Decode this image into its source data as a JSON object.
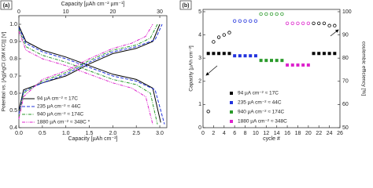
{
  "chart_data": [
    {
      "type": "line",
      "panel_label": "(a)",
      "xlabel": "Capacity [µAh cm⁻²]",
      "x2label": "Capacity [µAh cm⁻² µm⁻¹]",
      "ylabel": "Potential vs. [Ag|AgCl (3M KCl)] [V]",
      "xlim": [
        0,
        3.15
      ],
      "xticks": [
        {
          "value": 0,
          "label": "0.0"
        },
        {
          "value": 0.5,
          "label": "0.5"
        },
        {
          "value": 1,
          "label": "1.0"
        },
        1.5,
        {
          "value": 2,
          "label": "2.0"
        },
        2.5,
        {
          "value": 3,
          "label": "3.0"
        }
      ],
      "x2lim": [
        0,
        31.5
      ],
      "x2ticks": [
        0,
        10,
        20,
        30
      ],
      "ylim": [
        0.4,
        1.05
      ],
      "yticks": [
        0.4,
        0.5,
        0.6,
        0.7,
        0.8,
        0.9,
        {
          "value": 1,
          "label": "1.0"
        }
      ],
      "series": [
        {
          "name": "94 µA cm⁻² ≈ 17C",
          "color": "#000000",
          "dash": "solid",
          "curves": [
            {
              "x": [
                0,
                0.15,
                0.5,
                1,
                1.5,
                2,
                2.5,
                2.85,
                3.02
              ],
              "values": [
                0.99,
                0.9,
                0.85,
                0.81,
                0.76,
                0.71,
                0.68,
                0.63,
                0.43
              ]
            },
            {
              "x": [
                0,
                0.1,
                0.5,
                1,
                1.5,
                2,
                2.5,
                2.85,
                3.0
              ],
              "values": [
                0.5,
                0.62,
                0.66,
                0.7,
                0.77,
                0.83,
                0.86,
                0.9,
                1.0
              ]
            }
          ]
        },
        {
          "name": "235 µA cm⁻² ≈ 44C",
          "color": "#2233dd",
          "dash": "dashed",
          "curves": [
            {
              "x": [
                0,
                0.15,
                0.5,
                1,
                1.5,
                2,
                2.5,
                2.9,
                3.1
              ],
              "values": [
                0.98,
                0.89,
                0.84,
                0.8,
                0.75,
                0.7,
                0.67,
                0.62,
                0.42
              ]
            },
            {
              "x": [
                0,
                0.1,
                0.5,
                1,
                1.5,
                2,
                2.5,
                2.9,
                3.05
              ],
              "values": [
                0.48,
                0.61,
                0.66,
                0.71,
                0.78,
                0.84,
                0.87,
                0.91,
                1.0
              ]
            }
          ]
        },
        {
          "name": "940 µA cm⁻² ≈ 174C",
          "color": "#2a9a2a",
          "dash": "dashdot",
          "curves": [
            {
              "x": [
                0,
                0.15,
                0.5,
                1,
                1.5,
                2,
                2.5,
                2.8,
                2.95
              ],
              "values": [
                0.97,
                0.87,
                0.82,
                0.78,
                0.73,
                0.68,
                0.65,
                0.6,
                0.42
              ]
            },
            {
              "x": [
                0,
                0.1,
                0.5,
                1,
                1.5,
                2,
                2.5,
                2.8,
                2.95
              ],
              "values": [
                0.46,
                0.6,
                0.67,
                0.72,
                0.79,
                0.85,
                0.88,
                0.92,
                1.0
              ]
            }
          ]
        },
        {
          "name": "1880 µA cm⁻² ≈ 348C *",
          "color": "#dd22cc",
          "dash": "dashdotdot",
          "curves": [
            {
              "x": [
                0,
                0.15,
                0.5,
                1,
                1.5,
                2,
                2.4,
                2.7,
                2.85
              ],
              "values": [
                0.96,
                0.85,
                0.8,
                0.76,
                0.71,
                0.66,
                0.63,
                0.58,
                0.42
              ]
            },
            {
              "x": [
                0,
                0.1,
                0.5,
                1,
                1.5,
                2,
                2.4,
                2.7,
                2.85
              ],
              "values": [
                0.45,
                0.58,
                0.68,
                0.73,
                0.8,
                0.86,
                0.89,
                0.93,
                1.0
              ]
            }
          ]
        }
      ]
    },
    {
      "type": "scatter",
      "panel_label": "(b)",
      "xlabel": "cycle #",
      "ylabel": "Capacity [µAh cm⁻²]",
      "y2label": "coulombic efficiency [%]",
      "xlim": [
        0,
        26
      ],
      "xticks": [
        0,
        2,
        4,
        6,
        8,
        10,
        12,
        14,
        16,
        18,
        20,
        22,
        24,
        26
      ],
      "ylim": [
        0,
        5.1
      ],
      "yticks": [
        0,
        1,
        2,
        3,
        4,
        5
      ],
      "y2lim": [
        50,
        101
      ],
      "y2ticks": [
        50,
        60,
        70,
        80,
        90,
        100
      ],
      "series": [
        {
          "name": "94 µA cm⁻² ≈ 17C",
          "color": "#000000",
          "marker": "square",
          "x": [
            1,
            2,
            3,
            4,
            5,
            21,
            22,
            23,
            24,
            25
          ],
          "values": [
            3.2,
            3.2,
            3.2,
            3.2,
            3.2,
            3.2,
            3.2,
            3.2,
            3.2,
            3.2
          ]
        },
        {
          "name": "235 µA cm⁻² ≈ 44C",
          "color": "#2233dd",
          "marker": "square",
          "x": [
            6,
            7,
            8,
            9,
            10
          ],
          "values": [
            3.1,
            3.1,
            3.1,
            3.1,
            3.1
          ]
        },
        {
          "name": "940 µA cm⁻² ≈ 174C",
          "color": "#2a9a2a",
          "marker": "square",
          "x": [
            11,
            12,
            13,
            14,
            15
          ],
          "values": [
            2.9,
            2.9,
            2.9,
            2.9,
            2.9
          ]
        },
        {
          "name": "1880 µA cm⁻² ≈ 348C",
          "color": "#dd22cc",
          "marker": "square",
          "x": [
            16,
            17,
            18,
            19,
            20
          ],
          "values": [
            2.7,
            2.7,
            2.7,
            2.7,
            2.7
          ]
        },
        {
          "color": "#000000",
          "marker": "circle",
          "axis": "y2",
          "x": [
            1,
            2,
            3,
            4,
            5,
            21,
            22,
            23,
            24,
            25
          ],
          "values": [
            57,
            87,
            89,
            90,
            91,
            95,
            95,
            95,
            94,
            94
          ]
        },
        {
          "color": "#2233dd",
          "marker": "circle",
          "axis": "y2",
          "x": [
            6,
            7,
            8,
            9,
            10
          ],
          "values": [
            96,
            96,
            96,
            96,
            96
          ]
        },
        {
          "color": "#2a9a2a",
          "marker": "circle",
          "axis": "y2",
          "x": [
            11,
            12,
            13,
            14,
            15
          ],
          "values": [
            99,
            99,
            99,
            99,
            99
          ]
        },
        {
          "color": "#dd22cc",
          "marker": "circle",
          "axis": "y2",
          "x": [
            16,
            17,
            18,
            19,
            20
          ],
          "values": [
            95,
            95,
            95,
            95,
            95
          ]
        }
      ]
    }
  ]
}
